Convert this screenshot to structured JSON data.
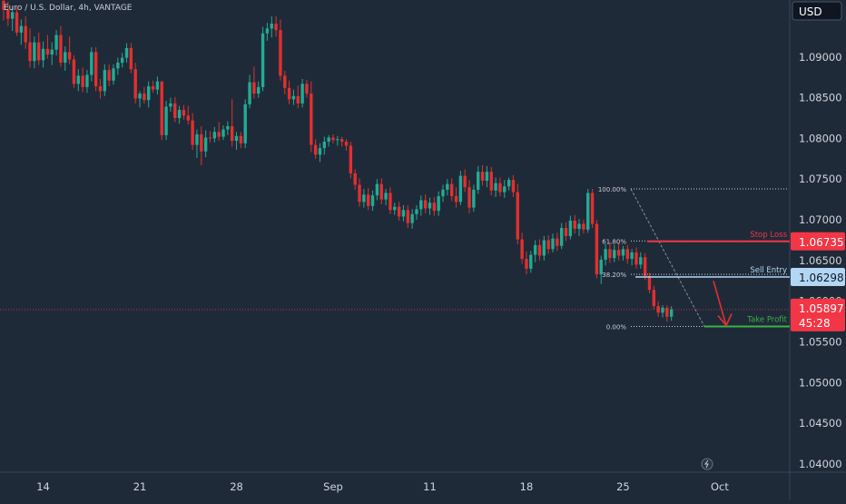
{
  "header": {
    "symbol_line": "Euro / U.S. Dollar, 4h, VANTAGE"
  },
  "axis": {
    "currency": "USD",
    "countdown": "45:28"
  },
  "chart_data": {
    "type": "candlestick",
    "title": "Euro / U.S. Dollar, 4h, VANTAGE",
    "currency": "USD",
    "y_ticks": [
      "1.09000",
      "1.08500",
      "1.08000",
      "1.07500",
      "1.07000",
      "1.06500",
      "1.06000",
      "1.05500",
      "1.05000",
      "1.04500",
      "1.04000"
    ],
    "y_range": [
      1.04,
      1.097
    ],
    "x_labels": [
      "14",
      "21",
      "28",
      "Sep",
      "11",
      "18",
      "25",
      "Oct"
    ],
    "x_label_bar_index": [
      9,
      31,
      53,
      75,
      97,
      119,
      141,
      163
    ],
    "current_price": "1.05897",
    "bull_color": "#22ab94",
    "bear_color": "#e2302f",
    "fib_levels": [
      {
        "label": "100.00%",
        "price": 1.0738
      },
      {
        "label": "61.80%",
        "price": 1.0674
      },
      {
        "label": "38.20%",
        "price": 1.0633
      },
      {
        "label": "0.00%",
        "price": 1.0569
      }
    ],
    "levels": [
      {
        "name": "Stop Loss",
        "price": 1.06735,
        "price_label": "1.06735",
        "color": "#f23645"
      },
      {
        "name": "Sell Entry",
        "price": 1.06298,
        "price_label": "1.06298",
        "color": "#b2d7f5"
      },
      {
        "name": "Take Profit",
        "price": 1.0569,
        "price_label": "",
        "color": "#3cb043"
      }
    ],
    "candles": [
      [
        1.0969,
        1.0973,
        1.0945,
        1.0958
      ],
      [
        1.0958,
        1.0968,
        1.0938,
        1.0947
      ],
      [
        1.0947,
        1.0962,
        1.0932,
        1.0955
      ],
      [
        1.0955,
        1.0962,
        1.0926,
        1.093
      ],
      [
        1.093,
        1.0946,
        1.0915,
        1.0938
      ],
      [
        1.0938,
        1.095,
        1.091,
        1.0918
      ],
      [
        1.0918,
        1.0935,
        1.0887,
        1.0895
      ],
      [
        1.0895,
        1.0925,
        1.0886,
        1.0918
      ],
      [
        1.0918,
        1.093,
        1.089,
        1.0896
      ],
      [
        1.0896,
        1.0919,
        1.0887,
        1.091
      ],
      [
        1.091,
        1.0927,
        1.0898,
        1.0903
      ],
      [
        1.0903,
        1.0918,
        1.089,
        1.0909
      ],
      [
        1.0909,
        1.0933,
        1.0902,
        1.0927
      ],
      [
        1.0927,
        1.0938,
        1.0888,
        1.0893
      ],
      [
        1.0893,
        1.0913,
        1.0883,
        1.0906
      ],
      [
        1.0906,
        1.0925,
        1.0891,
        1.0897
      ],
      [
        1.0897,
        1.0902,
        1.0862,
        1.0867
      ],
      [
        1.0867,
        1.0885,
        1.0858,
        1.0877
      ],
      [
        1.0877,
        1.0887,
        1.0857,
        1.0863
      ],
      [
        1.0863,
        1.0884,
        1.0856,
        1.0878
      ],
      [
        1.0878,
        1.0912,
        1.087,
        1.0906
      ],
      [
        1.0906,
        1.0912,
        1.0858,
        1.0864
      ],
      [
        1.0864,
        1.0873,
        1.0849,
        1.0858
      ],
      [
        1.0858,
        1.0891,
        1.0852,
        1.0884
      ],
      [
        1.0884,
        1.0891,
        1.0864,
        1.0871
      ],
      [
        1.0871,
        1.0891,
        1.0866,
        1.0886
      ],
      [
        1.0886,
        1.0899,
        1.0878,
        1.0893
      ],
      [
        1.0893,
        1.0905,
        1.0887,
        1.0899
      ],
      [
        1.0899,
        1.0917,
        1.0893,
        1.0911
      ],
      [
        1.0911,
        1.0917,
        1.088,
        1.0885
      ],
      [
        1.0885,
        1.0893,
        1.0843,
        1.0849
      ],
      [
        1.0849,
        1.0858,
        1.0838,
        1.0855
      ],
      [
        1.0855,
        1.0863,
        1.0843,
        1.0847
      ],
      [
        1.0847,
        1.087,
        1.0838,
        1.0864
      ],
      [
        1.0864,
        1.0871,
        1.0856,
        1.086
      ],
      [
        1.086,
        1.0876,
        1.0854,
        1.087
      ],
      [
        1.087,
        1.087,
        1.0798,
        1.0804
      ],
      [
        1.0804,
        1.0846,
        1.0798,
        1.0839
      ],
      [
        1.0839,
        1.085,
        1.0833,
        1.0843
      ],
      [
        1.0843,
        1.0851,
        1.082,
        1.0825
      ],
      [
        1.0825,
        1.084,
        1.0818,
        1.0835
      ],
      [
        1.0835,
        1.0841,
        1.0823,
        1.0828
      ],
      [
        1.0828,
        1.084,
        1.0817,
        1.0822
      ],
      [
        1.0822,
        1.0831,
        1.0786,
        1.0792
      ],
      [
        1.0792,
        1.0811,
        1.0776,
        1.0805
      ],
      [
        1.0805,
        1.0815,
        1.0767,
        1.0784
      ],
      [
        1.0784,
        1.081,
        1.0777,
        1.0801
      ],
      [
        1.0801,
        1.0809,
        1.0795,
        1.08
      ],
      [
        1.08,
        1.0814,
        1.0795,
        1.0808
      ],
      [
        1.0808,
        1.082,
        1.0797,
        1.0802
      ],
      [
        1.0802,
        1.0816,
        1.0798,
        1.0811
      ],
      [
        1.0811,
        1.0821,
        1.0804,
        1.0815
      ],
      [
        1.0815,
        1.0848,
        1.079,
        1.0797
      ],
      [
        1.0797,
        1.0808,
        1.0786,
        1.0803
      ],
      [
        1.0803,
        1.0808,
        1.0788,
        1.0794
      ],
      [
        1.0794,
        1.0848,
        1.0788,
        1.0842
      ],
      [
        1.0842,
        1.0878,
        1.0837,
        1.0869
      ],
      [
        1.0869,
        1.0888,
        1.0849,
        1.0855
      ],
      [
        1.0855,
        1.087,
        1.085,
        1.0863
      ],
      [
        1.0863,
        1.0937,
        1.0858,
        1.0929
      ],
      [
        1.0929,
        1.0942,
        1.092,
        1.0935
      ],
      [
        1.0935,
        1.095,
        1.0924,
        1.0941
      ],
      [
        1.0941,
        1.095,
        1.0925,
        1.0933
      ],
      [
        1.0933,
        1.0946,
        1.0871,
        1.0877
      ],
      [
        1.0877,
        1.0883,
        1.0854,
        1.0862
      ],
      [
        1.0862,
        1.0871,
        1.0842,
        1.0848
      ],
      [
        1.0848,
        1.086,
        1.0841,
        1.0852
      ],
      [
        1.0852,
        1.0865,
        1.0837,
        1.0843
      ],
      [
        1.0843,
        1.0873,
        1.0838,
        1.0867
      ],
      [
        1.0867,
        1.0872,
        1.085,
        1.0855
      ],
      [
        1.0855,
        1.087,
        1.0783,
        1.0792
      ],
      [
        1.0792,
        1.0799,
        1.0775,
        1.078
      ],
      [
        1.078,
        1.0794,
        1.0771,
        1.0788
      ],
      [
        1.0788,
        1.0802,
        1.078,
        1.0796
      ],
      [
        1.0796,
        1.0804,
        1.079,
        1.0801
      ],
      [
        1.0801,
        1.0805,
        1.0794,
        1.0798
      ],
      [
        1.0798,
        1.0803,
        1.0791,
        1.0799
      ],
      [
        1.0799,
        1.0802,
        1.079,
        1.0796
      ],
      [
        1.0796,
        1.0799,
        1.0785,
        1.0791
      ],
      [
        1.0791,
        1.0796,
        1.0751,
        1.0757
      ],
      [
        1.0757,
        1.0762,
        1.0737,
        1.0743
      ],
      [
        1.0743,
        1.0751,
        1.0716,
        1.0722
      ],
      [
        1.0722,
        1.0738,
        1.0715,
        1.0731
      ],
      [
        1.0731,
        1.0739,
        1.0712,
        1.0717
      ],
      [
        1.0717,
        1.0736,
        1.0711,
        1.073
      ],
      [
        1.073,
        1.075,
        1.0724,
        1.0744
      ],
      [
        1.0744,
        1.0751,
        1.0719,
        1.0725
      ],
      [
        1.0725,
        1.0738,
        1.0718,
        1.0733
      ],
      [
        1.0733,
        1.074,
        1.0707,
        1.0712
      ],
      [
        1.0712,
        1.0721,
        1.0706,
        1.0716
      ],
      [
        1.0716,
        1.0722,
        1.0699,
        1.0704
      ],
      [
        1.0704,
        1.0718,
        1.0698,
        1.0712
      ],
      [
        1.0712,
        1.0718,
        1.069,
        1.0696
      ],
      [
        1.0696,
        1.0713,
        1.0689,
        1.0707
      ],
      [
        1.0707,
        1.0718,
        1.07,
        1.0713
      ],
      [
        1.0713,
        1.073,
        1.0705,
        1.0724
      ],
      [
        1.0724,
        1.0731,
        1.0708,
        1.0714
      ],
      [
        1.0714,
        1.0727,
        1.0706,
        1.0721
      ],
      [
        1.0721,
        1.0728,
        1.0705,
        1.0711
      ],
      [
        1.0711,
        1.0735,
        1.0705,
        1.0729
      ],
      [
        1.0729,
        1.0743,
        1.0722,
        1.0737
      ],
      [
        1.0737,
        1.075,
        1.073,
        1.0744
      ],
      [
        1.0744,
        1.0751,
        1.0723,
        1.0729
      ],
      [
        1.0729,
        1.074,
        1.0715,
        1.0722
      ],
      [
        1.0722,
        1.076,
        1.0718,
        1.0754
      ],
      [
        1.0754,
        1.0762,
        1.0734,
        1.074
      ],
      [
        1.074,
        1.0749,
        1.0708,
        1.0715
      ],
      [
        1.0715,
        1.0743,
        1.071,
        1.0737
      ],
      [
        1.0737,
        1.0766,
        1.0732,
        1.0759
      ],
      [
        1.0759,
        1.0767,
        1.0742,
        1.0748
      ],
      [
        1.0748,
        1.0766,
        1.074,
        1.0759
      ],
      [
        1.0759,
        1.0765,
        1.073,
        1.0736
      ],
      [
        1.0736,
        1.0752,
        1.0728,
        1.0745
      ],
      [
        1.0745,
        1.0752,
        1.0729,
        1.0734
      ],
      [
        1.0734,
        1.0749,
        1.0727,
        1.0741
      ],
      [
        1.0741,
        1.0752,
        1.0736,
        1.0749
      ],
      [
        1.0749,
        1.0755,
        1.0728,
        1.0734
      ],
      [
        1.0734,
        1.0744,
        1.067,
        1.0676
      ],
      [
        1.0676,
        1.0684,
        1.0646,
        1.0652
      ],
      [
        1.0652,
        1.0661,
        1.0633,
        1.064
      ],
      [
        1.064,
        1.0662,
        1.0635,
        1.0657
      ],
      [
        1.0657,
        1.0675,
        1.0648,
        1.0669
      ],
      [
        1.0669,
        1.0676,
        1.065,
        1.0656
      ],
      [
        1.0656,
        1.068,
        1.065,
        1.0675
      ],
      [
        1.0675,
        1.0681,
        1.0658,
        1.0664
      ],
      [
        1.0664,
        1.0683,
        1.066,
        1.0677
      ],
      [
        1.0677,
        1.0684,
        1.0662,
        1.0668
      ],
      [
        1.0668,
        1.0696,
        1.0664,
        1.069
      ],
      [
        1.069,
        1.0697,
        1.0674,
        1.068
      ],
      [
        1.068,
        1.0705,
        1.0676,
        1.0699
      ],
      [
        1.0699,
        1.0706,
        1.0683,
        1.0689
      ],
      [
        1.0689,
        1.0701,
        1.068,
        1.0695
      ],
      [
        1.0695,
        1.07,
        1.0683,
        1.0688
      ],
      [
        1.0688,
        1.0738,
        1.0684,
        1.0733
      ],
      [
        1.0733,
        1.0738,
        1.069,
        1.0695
      ],
      [
        1.0695,
        1.07,
        1.0628,
        1.0633
      ],
      [
        1.0633,
        1.0656,
        1.0621,
        1.0651
      ],
      [
        1.0651,
        1.067,
        1.0644,
        1.0664
      ],
      [
        1.0664,
        1.0673,
        1.0647,
        1.0653
      ],
      [
        1.0653,
        1.0669,
        1.0648,
        1.0663
      ],
      [
        1.0663,
        1.0672,
        1.065,
        1.0656
      ],
      [
        1.0656,
        1.0668,
        1.065,
        1.0664
      ],
      [
        1.0664,
        1.0669,
        1.0646,
        1.0652
      ],
      [
        1.0652,
        1.0664,
        1.0644,
        1.066
      ],
      [
        1.066,
        1.0666,
        1.064,
        1.0645
      ],
      [
        1.0645,
        1.066,
        1.064,
        1.0654
      ],
      [
        1.0654,
        1.0659,
        1.0626,
        1.0631
      ],
      [
        1.0631,
        1.0635,
        1.061,
        1.0614
      ],
      [
        1.0614,
        1.0619,
        1.059,
        1.0594
      ],
      [
        1.0594,
        1.06,
        1.0581,
        1.0586
      ],
      [
        1.0586,
        1.0595,
        1.058,
        1.0592
      ],
      [
        1.0592,
        1.0595,
        1.0575,
        1.0581
      ],
      [
        1.0581,
        1.0594,
        1.0576,
        1.059
      ]
    ]
  }
}
